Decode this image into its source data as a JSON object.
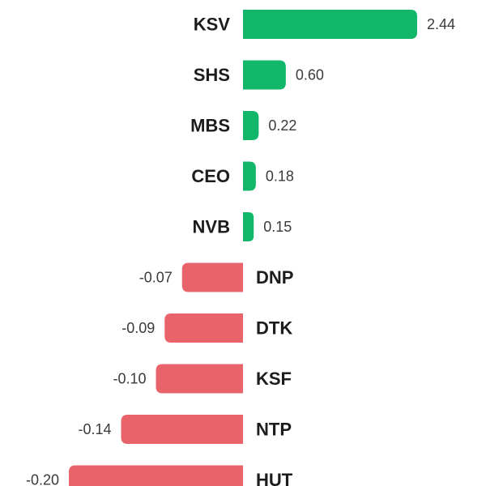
{
  "chart_data": {
    "type": "bar",
    "orientation": "horizontal",
    "categories": [
      "KSV",
      "SHS",
      "MBS",
      "CEO",
      "NVB",
      "DNP",
      "DTK",
      "KSF",
      "NTP",
      "HUT"
    ],
    "values": [
      2.44,
      0.6,
      0.22,
      0.18,
      0.15,
      -0.07,
      -0.09,
      -0.1,
      -0.14,
      -0.2
    ],
    "value_labels": [
      "2.44",
      "0.60",
      "0.22",
      "0.18",
      "0.15",
      "-0.07",
      "-0.09",
      "-0.10",
      "-0.14",
      "-0.20"
    ],
    "title": "",
    "xlabel": "",
    "ylabel": "",
    "colors": {
      "positive": "#12b76a",
      "negative": "#e9636b"
    },
    "grid": false,
    "legend": "none"
  }
}
